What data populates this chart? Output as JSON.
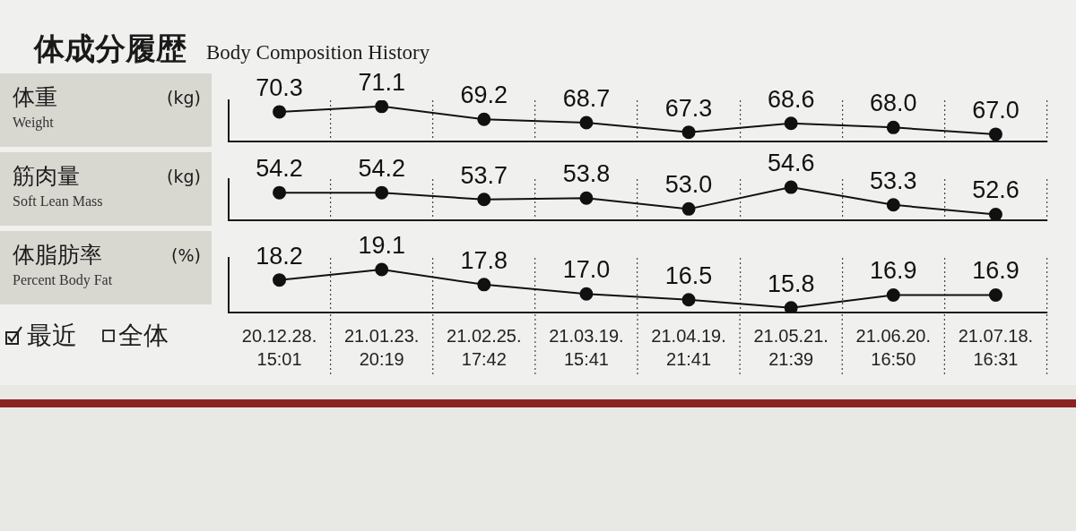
{
  "chart_data": [
    {
      "type": "line",
      "title": "体成分履歴",
      "subtitle": "Body Composition History",
      "ylabel": "体重 (kg)\nWeight",
      "categories": [
        null,
        null,
        null,
        null,
        null,
        null,
        null,
        null
      ],
      "series": [
        {
          "color": "#111111",
          "values": [
            70.3,
            71.1,
            69.2,
            68.7,
            67.3,
            68.6,
            68.0,
            67.0
          ],
          "value_labels": [
            "70.3",
            "71.1",
            "69.2",
            "68.7",
            "67.3",
            "68.6",
            "68.0",
            "67.0"
          ]
        }
      ],
      "ylim": [
        66,
        72
      ],
      "marker": "circle",
      "grid": "x"
    },
    {
      "type": "line",
      "ylabel": "筋肉量 (kg)\nSoft Lean Mass",
      "categories": [
        null,
        null,
        null,
        null,
        null,
        null,
        null,
        null
      ],
      "series": [
        {
          "color": "#111111",
          "values": [
            54.2,
            54.2,
            53.7,
            53.8,
            53.0,
            54.6,
            53.3,
            52.6
          ],
          "value_labels": [
            "54.2",
            "54.2",
            "53.7",
            "53.8",
            "53.0",
            "54.6",
            "53.3",
            "52.6"
          ]
        }
      ],
      "ylim": [
        52.2,
        55.2
      ],
      "marker": "circle",
      "grid": "x"
    },
    {
      "type": "line",
      "ylabel": "体脂肪率 (%)\nPercent Body Fat",
      "categories": [
        "20.12.28.\n15:01",
        "21.01.23.\n20:19",
        "21.02.25.\n17:42",
        "21.03.19.\n15:41",
        "21.04.19.\n21:41",
        "21.05.21.\n21:39",
        "21.06.20.\n16:50",
        "21.07.18.\n16:31"
      ],
      "series": [
        {
          "color": "#111111",
          "values": [
            18.2,
            19.1,
            17.8,
            17.0,
            16.5,
            15.8,
            16.9,
            16.9
          ],
          "value_labels": [
            "18.2",
            "19.1",
            "17.8",
            "17.0",
            "16.5",
            "15.8",
            "16.9",
            "16.9"
          ]
        }
      ],
      "ylim": [
        15.4,
        20.1
      ],
      "marker": "circle",
      "grid": "x",
      "tick_labels": "x",
      "annotations": [
        "最近",
        "全体"
      ]
    }
  ]
}
